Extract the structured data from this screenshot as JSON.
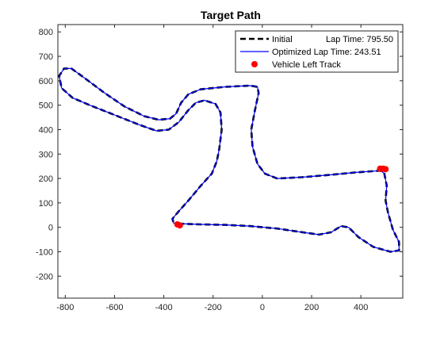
{
  "figure": {
    "background": "#ffffff",
    "axes_background": "#ffffff",
    "axis_color": "#262626"
  },
  "chart_data": {
    "type": "line",
    "title": "Target Path",
    "xlabel": "",
    "ylabel": "",
    "xlim": [
      -830,
      570
    ],
    "ylim": [
      -290,
      830
    ],
    "x_ticks": [
      -800,
      -600,
      -400,
      -200,
      0,
      200,
      400
    ],
    "y_ticks": [
      800,
      700,
      600,
      500,
      400,
      300,
      200,
      100,
      0,
      -100,
      -200
    ],
    "x_tick_labels": [
      "-800",
      "-600",
      "-400",
      "-200",
      "0",
      "200",
      "400"
    ],
    "y_tick_labels": [
      "800",
      "700",
      "600",
      "500",
      "400",
      "300",
      "200",
      "100",
      "0",
      "-100",
      "-200"
    ],
    "grid": false,
    "legend": {
      "placement": "top-right",
      "entries": [
        {
          "label": "Initial",
          "extra": "Lap Time: 795.50",
          "style": "dashed",
          "color": "#000000"
        },
        {
          "label": "Optimized Lap Time: 243.51",
          "extra": "",
          "style": "solid",
          "color": "#0000ff"
        },
        {
          "label": "Vehicle Left Track",
          "extra": "",
          "style": "marker",
          "color": "#ff0000"
        }
      ]
    },
    "series": [
      {
        "name": "Initial",
        "style": "dashed",
        "color": "#000000",
        "closed": true,
        "points": [
          [
            -340,
            15
          ],
          [
            -250,
            12
          ],
          [
            -150,
            10
          ],
          [
            -50,
            5
          ],
          [
            60,
            -5
          ],
          [
            160,
            -20
          ],
          [
            230,
            -30
          ],
          [
            280,
            -20
          ],
          [
            320,
            5
          ],
          [
            350,
            0
          ],
          [
            390,
            -40
          ],
          [
            450,
            -80
          ],
          [
            520,
            -100
          ],
          [
            555,
            -95
          ],
          [
            555,
            -60
          ],
          [
            530,
            -10
          ],
          [
            510,
            60
          ],
          [
            500,
            110
          ],
          [
            505,
            170
          ],
          [
            495,
            220
          ],
          [
            480,
            232
          ],
          [
            380,
            225
          ],
          [
            280,
            215
          ],
          [
            160,
            205
          ],
          [
            60,
            200
          ],
          [
            10,
            220
          ],
          [
            -20,
            260
          ],
          [
            -40,
            330
          ],
          [
            -45,
            400
          ],
          [
            -30,
            480
          ],
          [
            -15,
            550
          ],
          [
            -20,
            575
          ],
          [
            -50,
            580
          ],
          [
            -150,
            575
          ],
          [
            -250,
            565
          ],
          [
            -300,
            545
          ],
          [
            -330,
            510
          ],
          [
            -350,
            465
          ],
          [
            -375,
            445
          ],
          [
            -420,
            440
          ],
          [
            -480,
            455
          ],
          [
            -560,
            495
          ],
          [
            -640,
            550
          ],
          [
            -720,
            610
          ],
          [
            -775,
            650
          ],
          [
            -805,
            650
          ],
          [
            -825,
            620
          ],
          [
            -815,
            570
          ],
          [
            -770,
            530
          ],
          [
            -700,
            500
          ],
          [
            -600,
            460
          ],
          [
            -500,
            420
          ],
          [
            -430,
            395
          ],
          [
            -380,
            400
          ],
          [
            -340,
            430
          ],
          [
            -300,
            480
          ],
          [
            -270,
            510
          ],
          [
            -235,
            520
          ],
          [
            -190,
            505
          ],
          [
            -170,
            470
          ],
          [
            -165,
            400
          ],
          [
            -175,
            320
          ],
          [
            -185,
            270
          ],
          [
            -205,
            220
          ],
          [
            -250,
            170
          ],
          [
            -300,
            110
          ],
          [
            -340,
            65
          ],
          [
            -365,
            35
          ],
          [
            -360,
            17
          ]
        ]
      },
      {
        "name": "Optimized Lap Time: 243.51",
        "style": "solid",
        "color": "#0000ff",
        "closed": true,
        "points": [
          [
            -340,
            15
          ],
          [
            -250,
            12
          ],
          [
            -150,
            10
          ],
          [
            -50,
            5
          ],
          [
            60,
            -5
          ],
          [
            160,
            -20
          ],
          [
            230,
            -30
          ],
          [
            280,
            -20
          ],
          [
            320,
            5
          ],
          [
            350,
            0
          ],
          [
            390,
            -40
          ],
          [
            450,
            -80
          ],
          [
            520,
            -100
          ],
          [
            555,
            -95
          ],
          [
            555,
            -60
          ],
          [
            530,
            -10
          ],
          [
            510,
            60
          ],
          [
            500,
            110
          ],
          [
            505,
            170
          ],
          [
            495,
            220
          ],
          [
            480,
            232
          ],
          [
            380,
            225
          ],
          [
            280,
            215
          ],
          [
            160,
            205
          ],
          [
            60,
            200
          ],
          [
            10,
            220
          ],
          [
            -20,
            260
          ],
          [
            -40,
            330
          ],
          [
            -45,
            400
          ],
          [
            -30,
            480
          ],
          [
            -15,
            550
          ],
          [
            -20,
            575
          ],
          [
            -50,
            580
          ],
          [
            -150,
            575
          ],
          [
            -250,
            565
          ],
          [
            -300,
            545
          ],
          [
            -330,
            510
          ],
          [
            -350,
            465
          ],
          [
            -375,
            445
          ],
          [
            -420,
            440
          ],
          [
            -480,
            455
          ],
          [
            -560,
            495
          ],
          [
            -640,
            550
          ],
          [
            -720,
            610
          ],
          [
            -775,
            650
          ],
          [
            -805,
            650
          ],
          [
            -825,
            620
          ],
          [
            -815,
            570
          ],
          [
            -770,
            530
          ],
          [
            -700,
            500
          ],
          [
            -600,
            460
          ],
          [
            -500,
            420
          ],
          [
            -430,
            395
          ],
          [
            -380,
            400
          ],
          [
            -340,
            430
          ],
          [
            -300,
            480
          ],
          [
            -270,
            510
          ],
          [
            -235,
            520
          ],
          [
            -190,
            505
          ],
          [
            -170,
            470
          ],
          [
            -165,
            400
          ],
          [
            -175,
            320
          ],
          [
            -185,
            270
          ],
          [
            -205,
            220
          ],
          [
            -250,
            170
          ],
          [
            -300,
            110
          ],
          [
            -340,
            65
          ],
          [
            -365,
            35
          ],
          [
            -360,
            17
          ]
        ]
      },
      {
        "name": "Vehicle Left Track",
        "style": "marker",
        "color": "#ff0000",
        "points": [
          [
            -345,
            12
          ],
          [
            -335,
            8
          ],
          [
            478,
            240
          ],
          [
            490,
            240
          ],
          [
            500,
            238
          ]
        ]
      }
    ]
  }
}
